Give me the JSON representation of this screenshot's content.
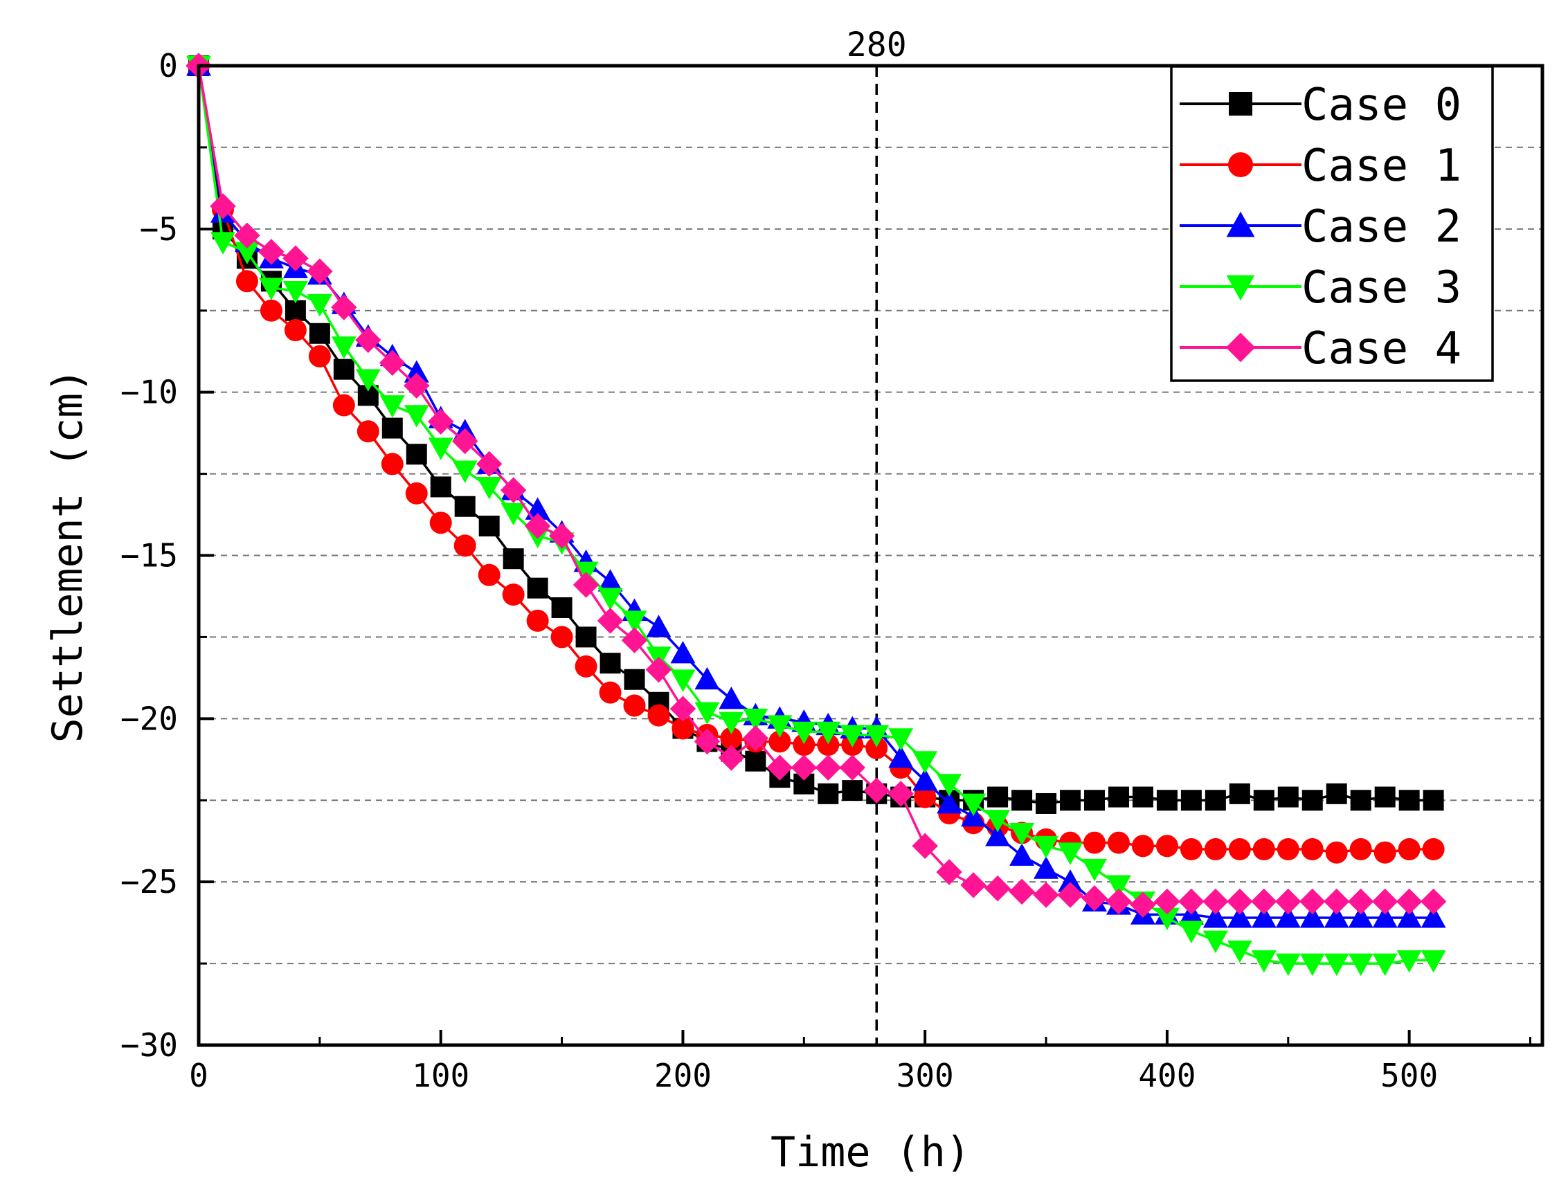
{
  "chart_data": {
    "type": "line",
    "xlabel": "Time (h)",
    "ylabel": "Settlement (cm)",
    "xlim": [
      0,
      555
    ],
    "ylim": [
      -30,
      0
    ],
    "xticks": [
      0,
      100,
      200,
      300,
      400,
      500
    ],
    "xtick_labels": [
      "0",
      "100",
      "200",
      "300",
      "400",
      "500"
    ],
    "yticks": [
      0,
      -5,
      -10,
      -15,
      -20,
      -25,
      -30
    ],
    "ytick_labels": [
      "0",
      "−5",
      "−10",
      "−15",
      "−20",
      "−25",
      "−30"
    ],
    "grid_y_dashed": [
      -2.5,
      -5,
      -7.5,
      -10,
      -12.5,
      -15,
      -17.5,
      -20,
      -22.5,
      -25,
      -27.5
    ],
    "reference_line": {
      "x": 280,
      "label": "280"
    },
    "legend_position": "top-right",
    "series": [
      {
        "name": "Case 0",
        "color": "#000000",
        "marker": "square",
        "x": [
          0,
          10,
          20,
          30,
          40,
          50,
          60,
          70,
          80,
          90,
          100,
          110,
          120,
          130,
          140,
          150,
          160,
          170,
          180,
          190,
          200,
          210,
          220,
          230,
          240,
          250,
          260,
          270,
          280,
          290,
          300,
          310,
          320,
          330,
          340,
          350,
          360,
          370,
          380,
          390,
          400,
          410,
          420,
          430,
          440,
          450,
          460,
          470,
          480,
          490,
          500,
          510
        ],
        "y": [
          0,
          -5.0,
          -5.9,
          -6.6,
          -7.5,
          -8.2,
          -9.3,
          -10.1,
          -11.1,
          -11.9,
          -12.9,
          -13.5,
          -14.1,
          -15.1,
          -16.0,
          -16.6,
          -17.5,
          -18.3,
          -18.8,
          -19.5,
          -20.3,
          -20.7,
          -21.0,
          -21.3,
          -21.8,
          -22.0,
          -22.3,
          -22.2,
          -22.3,
          -22.4,
          -22.4,
          -22.5,
          -22.5,
          -22.4,
          -22.5,
          -22.6,
          -22.5,
          -22.5,
          -22.4,
          -22.4,
          -22.5,
          -22.5,
          -22.5,
          -22.3,
          -22.5,
          -22.4,
          -22.5,
          -22.3,
          -22.5,
          -22.4,
          -22.5,
          -22.5
        ]
      },
      {
        "name": "Case 1",
        "color": "#ff0000",
        "marker": "circle",
        "x": [
          0,
          10,
          20,
          30,
          40,
          50,
          60,
          70,
          80,
          90,
          100,
          110,
          120,
          130,
          140,
          150,
          160,
          170,
          180,
          190,
          200,
          210,
          220,
          230,
          240,
          250,
          260,
          270,
          280,
          290,
          300,
          310,
          320,
          330,
          340,
          350,
          360,
          370,
          380,
          390,
          400,
          410,
          420,
          430,
          440,
          450,
          460,
          470,
          480,
          490,
          500,
          510
        ],
        "y": [
          0,
          -4.4,
          -6.6,
          -7.5,
          -8.1,
          -8.9,
          -10.4,
          -11.2,
          -12.2,
          -13.1,
          -14.0,
          -14.7,
          -15.6,
          -16.2,
          -17.0,
          -17.5,
          -18.4,
          -19.2,
          -19.6,
          -19.9,
          -20.3,
          -20.5,
          -20.6,
          -20.7,
          -20.7,
          -20.8,
          -20.8,
          -20.8,
          -20.9,
          -21.5,
          -22.4,
          -22.9,
          -23.2,
          -23.3,
          -23.5,
          -23.7,
          -23.8,
          -23.8,
          -23.8,
          -23.9,
          -23.9,
          -24.0,
          -24.0,
          -24.0,
          -24.0,
          -24.0,
          -24.0,
          -24.1,
          -24.0,
          -24.1,
          -24.0,
          -24.0
        ]
      },
      {
        "name": "Case 2",
        "color": "#0000ff",
        "marker": "triangle-up",
        "x": [
          0,
          10,
          20,
          30,
          40,
          50,
          60,
          70,
          80,
          90,
          100,
          110,
          120,
          130,
          140,
          150,
          160,
          170,
          180,
          190,
          200,
          210,
          220,
          230,
          240,
          250,
          260,
          270,
          280,
          290,
          300,
          310,
          320,
          330,
          340,
          350,
          360,
          370,
          380,
          390,
          400,
          410,
          420,
          430,
          440,
          450,
          460,
          470,
          480,
          490,
          500,
          510
        ],
        "y": [
          0,
          -4.5,
          -5.4,
          -5.9,
          -6.2,
          -6.4,
          -7.3,
          -8.3,
          -8.9,
          -9.4,
          -10.8,
          -11.2,
          -12.2,
          -13.0,
          -13.6,
          -14.3,
          -15.2,
          -15.8,
          -16.7,
          -17.2,
          -18.0,
          -18.8,
          -19.4,
          -19.9,
          -20.0,
          -20.1,
          -20.2,
          -20.3,
          -20.3,
          -21.2,
          -21.9,
          -22.6,
          -23.0,
          -23.6,
          -24.2,
          -24.6,
          -25.0,
          -25.6,
          -25.7,
          -26.0,
          -26.0,
          -26.0,
          -26.1,
          -26.1,
          -26.1,
          -26.1,
          -26.1,
          -26.1,
          -26.1,
          -26.1,
          -26.1,
          -26.1
        ]
      },
      {
        "name": "Case 3",
        "color": "#00ff00",
        "marker": "triangle-down",
        "x": [
          0,
          10,
          20,
          30,
          40,
          50,
          60,
          70,
          80,
          90,
          100,
          110,
          120,
          130,
          140,
          150,
          160,
          170,
          180,
          190,
          200,
          210,
          220,
          230,
          240,
          250,
          260,
          270,
          280,
          290,
          300,
          310,
          320,
          330,
          340,
          350,
          360,
          370,
          380,
          390,
          400,
          410,
          420,
          430,
          440,
          450,
          460,
          470,
          480,
          490,
          500,
          510
        ],
        "y": [
          0,
          -5.4,
          -5.7,
          -6.8,
          -6.9,
          -7.3,
          -8.6,
          -9.6,
          -10.4,
          -10.7,
          -11.7,
          -12.4,
          -12.9,
          -13.7,
          -14.4,
          -14.6,
          -15.5,
          -16.3,
          -17.0,
          -18.1,
          -18.8,
          -19.8,
          -20.1,
          -20.0,
          -20.2,
          -20.4,
          -20.4,
          -20.5,
          -20.5,
          -20.6,
          -21.3,
          -22.0,
          -22.6,
          -23.1,
          -23.5,
          -23.9,
          -24.1,
          -24.6,
          -25.1,
          -25.6,
          -26.1,
          -26.5,
          -26.8,
          -27.1,
          -27.4,
          -27.5,
          -27.5,
          -27.5,
          -27.5,
          -27.5,
          -27.4,
          -27.4
        ]
      },
      {
        "name": "Case 4",
        "color": "#ff1493",
        "marker": "diamond",
        "x": [
          0,
          10,
          20,
          30,
          40,
          50,
          60,
          70,
          80,
          90,
          100,
          110,
          120,
          130,
          140,
          150,
          160,
          170,
          180,
          190,
          200,
          210,
          220,
          230,
          240,
          250,
          260,
          270,
          280,
          290,
          300,
          310,
          320,
          330,
          340,
          350,
          360,
          370,
          380,
          390,
          400,
          410,
          420,
          430,
          440,
          450,
          460,
          470,
          480,
          490,
          500,
          510
        ],
        "y": [
          0,
          -4.3,
          -5.2,
          -5.7,
          -5.9,
          -6.3,
          -7.4,
          -8.4,
          -9.1,
          -9.8,
          -10.9,
          -11.5,
          -12.2,
          -13.0,
          -14.1,
          -14.4,
          -15.9,
          -17.0,
          -17.6,
          -18.5,
          -19.7,
          -20.7,
          -21.2,
          -20.6,
          -21.5,
          -21.5,
          -21.5,
          -21.5,
          -22.2,
          -22.3,
          -23.9,
          -24.7,
          -25.1,
          -25.2,
          -25.3,
          -25.4,
          -25.4,
          -25.5,
          -25.6,
          -25.7,
          -25.6,
          -25.6,
          -25.6,
          -25.6,
          -25.6,
          -25.6,
          -25.6,
          -25.6,
          -25.6,
          -25.6,
          -25.6,
          -25.6
        ]
      }
    ]
  }
}
